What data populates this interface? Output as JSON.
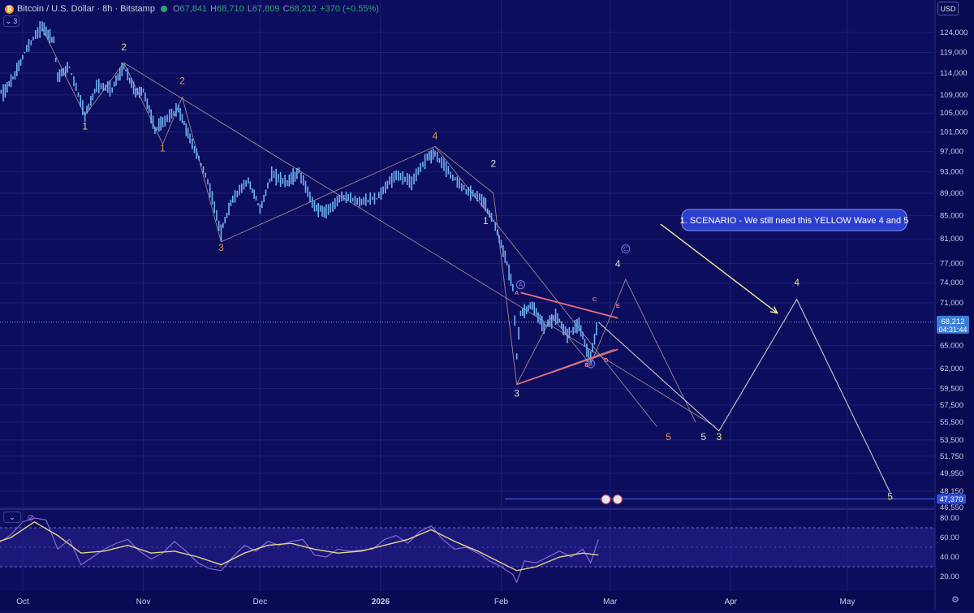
{
  "header": {
    "symbol": "Bitcoin / U.S. Dollar · 8h · Bitstamp",
    "o_label": "O",
    "o_value": "67,841",
    "h_label": "H",
    "h_value": "68,710",
    "l_label": "L",
    "l_value": "67,809",
    "c_label": "C",
    "c_value": "68,212",
    "change": "+370 (+0.55%)",
    "indicator_count": "3",
    "currency": "USD"
  },
  "colors": {
    "background": "#0d0d5e",
    "candle": "#6fb3f0",
    "rsi": "#8b6fd6",
    "rsi_ma": "#e8d58a",
    "trend_line": "#c9b49a",
    "triangle": "#e8707a",
    "projection": "#c9c8c0",
    "yellow_label": "#e8e07a",
    "orange_label": "#e8914a",
    "white_label": "#dcdcd0",
    "wave_label_blue": "#6f7ff0",
    "callout_bg": "#2b3fcf"
  },
  "chart_data": [
    {
      "type": "line",
      "title": "Bitcoin / U.S. Dollar · 8h · Bitstamp",
      "y_scale": "log",
      "ylim": [
        46550,
        126500
      ],
      "x_ticks": [
        {
          "label": "Oct",
          "date": "2025-10-01"
        },
        {
          "label": "Nov",
          "date": "2025-11-01"
        },
        {
          "label": "Dec",
          "date": "2025-12-01"
        },
        {
          "label": "2026",
          "date": "2026-01-01"
        },
        {
          "label": "Feb",
          "date": "2026-02-01"
        },
        {
          "label": "Mar",
          "date": "2026-03-01"
        },
        {
          "label": "Apr",
          "date": "2026-04-01"
        },
        {
          "label": "May",
          "date": "2026-05-01"
        }
      ],
      "y_ticks": [
        "124,000",
        "119,000",
        "114,000",
        "109,000",
        "105,000",
        "101,000",
        "97,000",
        "93,000",
        "89,000",
        "85,000",
        "81,000",
        "77,000",
        "74,000",
        "71,000",
        "65,000",
        "62,000",
        "59,500",
        "57,500",
        "55,500",
        "53,500",
        "51,750",
        "49,950",
        "48,150",
        "46,550"
      ],
      "price_series": {
        "name": "BTCUSD",
        "points": [
          [
            "2025-09-22",
            110000
          ],
          [
            "2025-09-26",
            109500
          ],
          [
            "2025-09-29",
            113500
          ],
          [
            "2025-10-02",
            120000
          ],
          [
            "2025-10-06",
            125500
          ],
          [
            "2025-10-09",
            122000
          ],
          [
            "2025-10-10",
            113000
          ],
          [
            "2025-10-13",
            115500
          ],
          [
            "2025-10-17",
            104500
          ],
          [
            "2025-10-20",
            111000
          ],
          [
            "2025-10-24",
            110500
          ],
          [
            "2025-10-27",
            115500
          ],
          [
            "2025-10-30",
            109500
          ],
          [
            "2025-11-01",
            110000
          ],
          [
            "2025-11-04",
            101500
          ],
          [
            "2025-11-06",
            103000
          ],
          [
            "2025-11-10",
            106000
          ],
          [
            "2025-11-13",
            99500
          ],
          [
            "2025-11-17",
            92500
          ],
          [
            "2025-11-21",
            82000
          ],
          [
            "2025-11-24",
            88000
          ],
          [
            "2025-11-28",
            91500
          ],
          [
            "2025-12-01",
            86000
          ],
          [
            "2025-12-04",
            92500
          ],
          [
            "2025-12-08",
            91000
          ],
          [
            "2025-12-11",
            93000
          ],
          [
            "2025-12-15",
            86500
          ],
          [
            "2025-12-18",
            85500
          ],
          [
            "2025-12-22",
            88500
          ],
          [
            "2025-12-26",
            87500
          ],
          [
            "2025-12-31",
            88000
          ],
          [
            "2026-01-05",
            92500
          ],
          [
            "2026-01-09",
            91000
          ],
          [
            "2026-01-13",
            96000
          ],
          [
            "2026-01-15",
            96500
          ],
          [
            "2026-01-19",
            92500
          ],
          [
            "2026-01-23",
            89500
          ],
          [
            "2026-01-27",
            88000
          ],
          [
            "2026-01-30",
            84000
          ],
          [
            "2026-02-02",
            78000
          ],
          [
            "2026-02-04",
            73500
          ],
          [
            "2026-02-05",
            63500
          ],
          [
            "2026-02-06",
            69500
          ],
          [
            "2026-02-09",
            70500
          ],
          [
            "2026-02-12",
            67500
          ],
          [
            "2026-02-15",
            69000
          ],
          [
            "2026-02-18",
            66500
          ],
          [
            "2026-02-21",
            68000
          ],
          [
            "2026-02-23",
            64500
          ],
          [
            "2026-02-24",
            63500
          ],
          [
            "2026-02-26",
            68212
          ]
        ]
      },
      "last_price": {
        "value": "68,212",
        "countdown": "04:31:44"
      },
      "target_price": "47,370",
      "callout": {
        "text": "1. SCENARIO - We still need this YELLOW Wave 4 and 5"
      },
      "wave_labels": [
        {
          "text": "1",
          "date": "2025-10-17",
          "price": 101500,
          "color": "yellow"
        },
        {
          "text": "2",
          "date": "2025-10-27",
          "price": 119500,
          "color": "yellow"
        },
        {
          "text": "1",
          "date": "2025-11-06",
          "price": 97000,
          "color": "orange"
        },
        {
          "text": "2",
          "date": "2025-11-11",
          "price": 111500,
          "color": "orange"
        },
        {
          "text": "3",
          "date": "2025-11-21",
          "price": 79000,
          "color": "orange"
        },
        {
          "text": "4",
          "date": "2026-01-15",
          "price": 99500,
          "color": "orange"
        },
        {
          "text": "2",
          "date": "2026-01-30",
          "price": 94000,
          "color": "white"
        },
        {
          "text": "1",
          "date": "2026-01-28",
          "price": 83500,
          "color": "white"
        },
        {
          "text": "3",
          "date": "2026-02-05",
          "price": 58500,
          "color": "white"
        },
        {
          "text": "A",
          "date": "2026-02-06",
          "price": 73200,
          "color": "blue"
        },
        {
          "text": "B",
          "date": "2026-02-24",
          "price": 62200,
          "color": "blue"
        },
        {
          "text": "C",
          "date": "2026-03-05",
          "price": 78800,
          "color": "blue"
        },
        {
          "text": "A",
          "date": "2026-02-05",
          "price": 72200,
          "color": "red"
        },
        {
          "text": "B",
          "date": "2026-02-23",
          "price": 62200,
          "color": "red"
        },
        {
          "text": "C",
          "date": "2026-02-25",
          "price": 71200,
          "color": "red"
        },
        {
          "text": "D",
          "date": "2026-02-28",
          "price": 62800,
          "color": "red"
        },
        {
          "text": "E",
          "date": "2026-03-03",
          "price": 70300,
          "color": "red"
        },
        {
          "text": "4",
          "date": "2026-03-03",
          "price": 76400,
          "color": "white"
        },
        {
          "text": "5",
          "date": "2026-03-16",
          "price": 53500,
          "color": "orange"
        },
        {
          "text": "5",
          "date": "2026-03-25",
          "price": 53500,
          "color": "white"
        },
        {
          "text": "3",
          "date": "2026-03-29",
          "price": 53500,
          "color": "yellow"
        },
        {
          "text": "4",
          "date": "2026-04-18",
          "price": 73500,
          "color": "yellow"
        },
        {
          "text": "5",
          "date": "2026-05-12",
          "price": 47300,
          "color": "yellow"
        }
      ]
    },
    {
      "type": "line",
      "title": "RSI",
      "ylim": [
        10,
        85
      ],
      "y_ticks": [
        "80.00",
        "60.00",
        "40.00",
        "20.00"
      ],
      "bands": [
        70,
        30
      ],
      "series": [
        {
          "key": "rsi",
          "points": [
            [
              "2025-09-22",
              48
            ],
            [
              "2025-09-25",
              55
            ],
            [
              "2025-09-28",
              63
            ],
            [
              "2025-10-01",
              76
            ],
            [
              "2025-10-04",
              80
            ],
            [
              "2025-10-07",
              78
            ],
            [
              "2025-10-10",
              48
            ],
            [
              "2025-10-13",
              58
            ],
            [
              "2025-10-16",
              32
            ],
            [
              "2025-10-19",
              40
            ],
            [
              "2025-10-22",
              48
            ],
            [
              "2025-10-25",
              54
            ],
            [
              "2025-10-28",
              58
            ],
            [
              "2025-10-31",
              46
            ],
            [
              "2025-11-03",
              38
            ],
            [
              "2025-11-06",
              44
            ],
            [
              "2025-11-09",
              56
            ],
            [
              "2025-11-12",
              46
            ],
            [
              "2025-11-15",
              34
            ],
            [
              "2025-11-18",
              28
            ],
            [
              "2025-11-21",
              26
            ],
            [
              "2025-11-24",
              40
            ],
            [
              "2025-11-27",
              52
            ],
            [
              "2025-11-30",
              46
            ],
            [
              "2025-12-03",
              56
            ],
            [
              "2025-12-06",
              52
            ],
            [
              "2025-12-09",
              56
            ],
            [
              "2025-12-12",
              58
            ],
            [
              "2025-12-15",
              42
            ],
            [
              "2025-12-18",
              40
            ],
            [
              "2025-12-21",
              48
            ],
            [
              "2025-12-24",
              46
            ],
            [
              "2025-12-27",
              47
            ],
            [
              "2025-12-30",
              48
            ],
            [
              "2026-01-02",
              58
            ],
            [
              "2026-01-05",
              62
            ],
            [
              "2026-01-08",
              54
            ],
            [
              "2026-01-11",
              66
            ],
            [
              "2026-01-14",
              72
            ],
            [
              "2026-01-17",
              58
            ],
            [
              "2026-01-20",
              48
            ],
            [
              "2026-01-23",
              50
            ],
            [
              "2026-01-26",
              44
            ],
            [
              "2026-01-29",
              36
            ],
            [
              "2026-02-01",
              30
            ],
            [
              "2026-02-04",
              22
            ],
            [
              "2026-02-05",
              14
            ],
            [
              "2026-02-07",
              36
            ],
            [
              "2026-02-10",
              34
            ],
            [
              "2026-02-13",
              40
            ],
            [
              "2026-02-16",
              46
            ],
            [
              "2026-02-19",
              40
            ],
            [
              "2026-02-22",
              48
            ],
            [
              "2026-02-24",
              34
            ],
            [
              "2026-02-26",
              58
            ]
          ]
        },
        {
          "key": "rsi_ma",
          "points": [
            [
              "2025-09-22",
              52
            ],
            [
              "2025-09-28",
              60
            ],
            [
              "2025-10-04",
              76
            ],
            [
              "2025-10-10",
              62
            ],
            [
              "2025-10-16",
              44
            ],
            [
              "2025-10-22",
              46
            ],
            [
              "2025-10-28",
              52
            ],
            [
              "2025-11-03",
              44
            ],
            [
              "2025-11-09",
              46
            ],
            [
              "2025-11-15",
              40
            ],
            [
              "2025-11-21",
              32
            ],
            [
              "2025-11-27",
              44
            ],
            [
              "2025-12-03",
              52
            ],
            [
              "2025-12-09",
              54
            ],
            [
              "2025-12-15",
              48
            ],
            [
              "2025-12-21",
              44
            ],
            [
              "2025-12-27",
              46
            ],
            [
              "2026-01-02",
              52
            ],
            [
              "2026-01-08",
              58
            ],
            [
              "2026-01-14",
              68
            ],
            [
              "2026-01-20",
              56
            ],
            [
              "2026-01-26",
              46
            ],
            [
              "2026-02-01",
              34
            ],
            [
              "2026-02-05",
              26
            ],
            [
              "2026-02-10",
              30
            ],
            [
              "2026-02-16",
              40
            ],
            [
              "2026-02-22",
              44
            ],
            [
              "2026-02-26",
              42
            ]
          ]
        }
      ]
    }
  ],
  "drawings": {
    "trend_lines": [
      [
        [
          "2025-10-06",
          125000
        ],
        [
          "2025-10-17",
          104500
        ],
        [
          "2025-10-27",
          116500
        ],
        [
          "2025-11-06",
          98500
        ],
        [
          "2025-11-11",
          108500
        ],
        [
          "2025-11-21",
          80500
        ],
        [
          "2026-01-15",
          98000
        ],
        [
          "2026-01-30",
          89000
        ],
        [
          "2026-02-05",
          60000
        ],
        [
          "2026-03-02",
          64500
        ]
      ],
      [
        [
          "2025-10-27",
          116500
        ],
        [
          "2026-03-28",
          55000
        ]
      ],
      [
        [
          "2026-01-15",
          98000
        ],
        [
          "2026-03-13",
          55000
        ]
      ],
      [
        [
          "2026-02-05",
          60000
        ],
        [
          "2026-02-14",
          69000
        ],
        [
          "2026-02-24",
          62500
        ],
        [
          "2026-03-05",
          74500
        ],
        [
          "2026-03-23",
          55500
        ]
      ]
    ],
    "triangle_lines": [
      [
        [
          "2026-02-06",
          72500
        ],
        [
          "2026-03-03",
          68800
        ]
      ],
      [
        [
          "2026-02-05",
          60000
        ],
        [
          "2026-03-03",
          64500
        ]
      ]
    ],
    "projection_path": [
      [
        "2026-02-26",
        68212
      ],
      [
        "2026-03-29",
        54500
      ],
      [
        "2026-04-18",
        71500
      ],
      [
        "2026-05-12",
        48000
      ]
    ],
    "callout_arrow": [
      [
        "2026-03-14",
        83500
      ],
      [
        "2026-04-13",
        69500
      ]
    ]
  }
}
